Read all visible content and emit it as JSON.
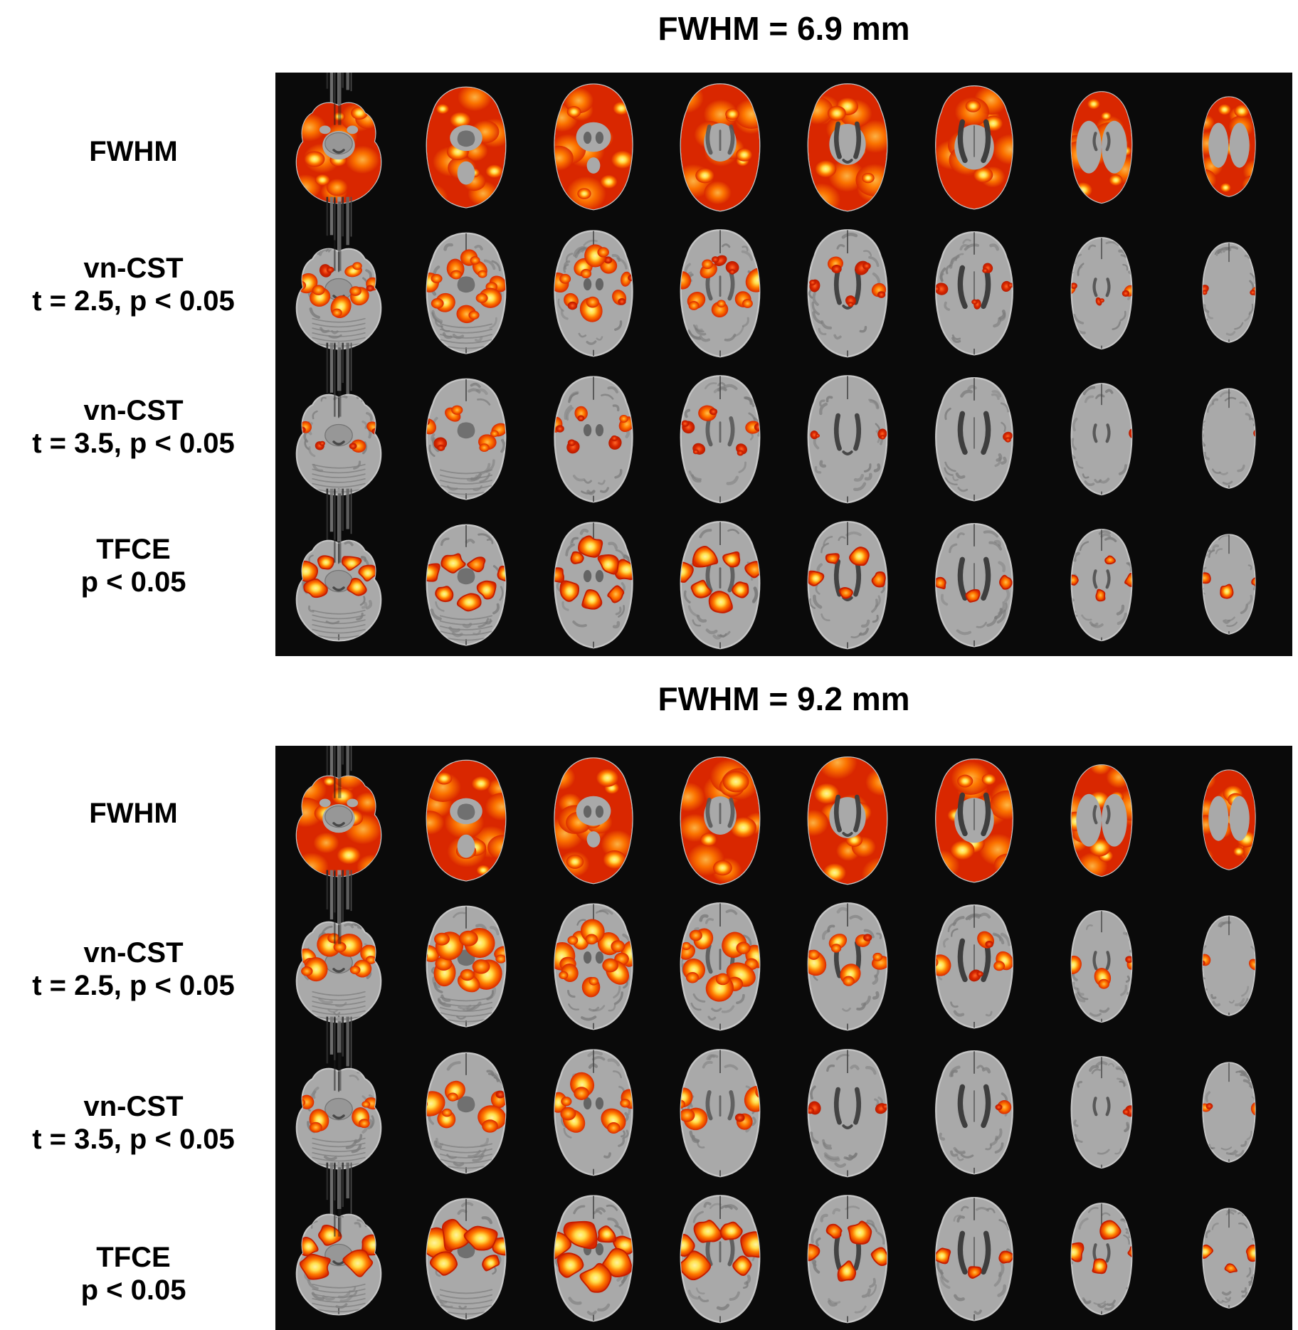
{
  "figure": {
    "type": "brain-slice-montage",
    "slice_orientation": "axial",
    "slices_per_row": 8,
    "panels": [
      {
        "title": "FWHM = 6.9 mm",
        "rows": [
          {
            "label_lines": [
              "FWHM"
            ],
            "style": "full",
            "blob_scale": 1.0,
            "blob_counts": [
              0,
              0,
              0,
              0,
              0,
              0,
              0,
              0
            ]
          },
          {
            "label_lines": [
              "vn-CST",
              "t = 2.5, p < 0.05"
            ],
            "style": "clusters",
            "blob_scale": 1.0,
            "blob_counts": [
              7,
              8,
              8,
              8,
              5,
              4,
              3,
              2
            ]
          },
          {
            "label_lines": [
              "vn-CST",
              "t = 3.5, p < 0.05"
            ],
            "style": "clusters",
            "blob_scale": 0.8,
            "blob_counts": [
              4,
              5,
              5,
              5,
              2,
              1,
              1,
              1
            ]
          },
          {
            "label_lines": [
              "TFCE",
              "p < 0.05"
            ],
            "style": "tfce",
            "blob_scale": 1.0,
            "blob_counts": [
              6,
              7,
              8,
              7,
              5,
              3,
              4,
              3
            ]
          }
        ]
      },
      {
        "title": "FWHM = 9.2 mm",
        "rows": [
          {
            "label_lines": [
              "FWHM"
            ],
            "style": "full",
            "blob_scale": 1.15,
            "blob_counts": [
              0,
              0,
              0,
              0,
              0,
              0,
              0,
              0
            ]
          },
          {
            "label_lines": [
              "vn-CST",
              "t = 2.5, p < 0.05"
            ],
            "style": "clusters",
            "blob_scale": 1.35,
            "blob_counts": [
              6,
              7,
              8,
              7,
              5,
              4,
              3,
              2
            ]
          },
          {
            "label_lines": [
              "vn-CST",
              "t = 3.5, p < 0.05"
            ],
            "style": "clusters",
            "blob_scale": 1.15,
            "blob_counts": [
              4,
              5,
              5,
              4,
              2,
              1,
              1,
              2
            ]
          },
          {
            "label_lines": [
              "TFCE",
              "p < 0.05"
            ],
            "style": "tfce",
            "blob_scale": 1.3,
            "blob_counts": [
              5,
              6,
              7,
              6,
              5,
              3,
              4,
              3
            ]
          }
        ]
      }
    ],
    "colors": {
      "page_background": "#ffffff",
      "panel_background": "#0a0a0a",
      "text": "#000000",
      "brain_gray": "#a9a9a9",
      "brain_halo": "#c6c6c6",
      "sulci_gray": "#7a7a7a",
      "deep_gray": "#454545",
      "hot_red": "#d92700",
      "hot_red_dark": "#b51b00",
      "hot_orange": "#ff7c00",
      "hot_yellow": "#ffe14d",
      "hot_yellow_pale": "#fff3a0",
      "tfce_outline": "#c41e00"
    }
  }
}
